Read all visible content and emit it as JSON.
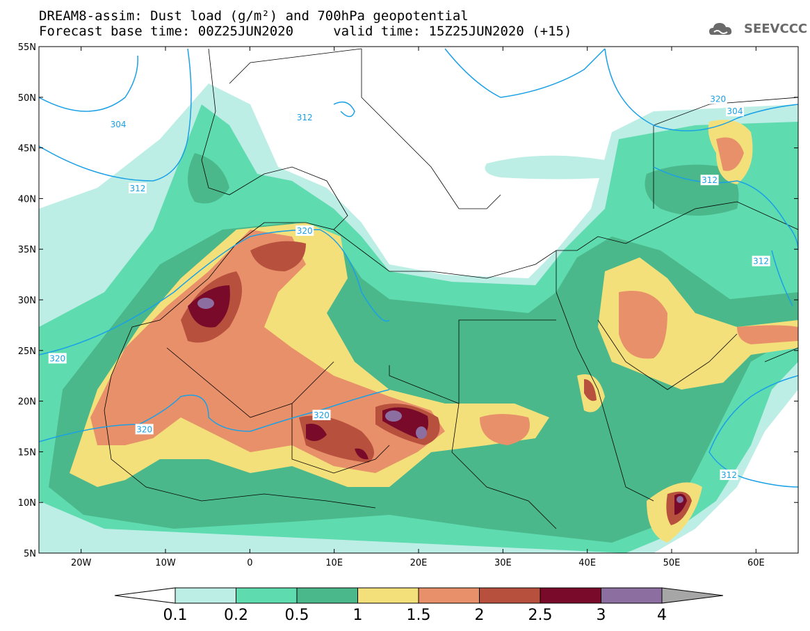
{
  "header": {
    "title_line1": "DREAM8-assim: Dust load (g/m²) and 700hPa geopotential",
    "title_line2": "Forecast base time: 00Z25JUN2020     valid time: 15Z25JUN2020 (+15)",
    "logo_text": "SEEVCCC"
  },
  "map": {
    "lat_labels": [
      "55N",
      "50N",
      "45N",
      "40N",
      "35N",
      "30N",
      "25N",
      "20N",
      "15N",
      "10N",
      "5N"
    ],
    "lon_labels": [
      "20W",
      "10W",
      "0",
      "10E",
      "20E",
      "30E",
      "40E",
      "50E",
      "60E"
    ],
    "lat_range": [
      5,
      55
    ],
    "lon_range": [
      -25,
      65
    ],
    "contour_labels": [
      {
        "text": "304",
        "lon": -15.6,
        "lat": 47.3
      },
      {
        "text": "304",
        "lon": 57.5,
        "lat": 48.6
      },
      {
        "text": "312",
        "lon": -13.3,
        "lat": 41.0
      },
      {
        "text": "312",
        "lon": 6.5,
        "lat": 48.0
      },
      {
        "text": "312",
        "lon": 54.5,
        "lat": 41.8
      },
      {
        "text": "312",
        "lon": 60.6,
        "lat": 33.8
      },
      {
        "text": "312",
        "lon": 56.8,
        "lat": 12.7
      },
      {
        "text": "320",
        "lon": 55.5,
        "lat": 49.8
      },
      {
        "text": "320",
        "lon": -22.8,
        "lat": 24.2
      },
      {
        "text": "320",
        "lon": -12.5,
        "lat": 17.2
      },
      {
        "text": "320",
        "lon": 6.5,
        "lat": 36.8
      },
      {
        "text": "320",
        "lon": 8.5,
        "lat": 18.6
      }
    ],
    "colors": {
      "background": "#ffffff",
      "contour": "#1aa0e6",
      "border": "#000000",
      "level_fills": [
        "#bdeee6",
        "#5fdbb0",
        "#4bb88b",
        "#f4e07a",
        "#e8906a",
        "#b8503e",
        "#7a0a2a",
        "#8c6ea0",
        "#a6a6a6"
      ]
    }
  },
  "colorbar": {
    "labels": [
      "0.1",
      "0.2",
      "0.5",
      "1",
      "1.5",
      "2",
      "2.5",
      "3",
      "4"
    ],
    "colors": [
      "#ffffff",
      "#bdeee6",
      "#5fdbb0",
      "#4bb88b",
      "#f4e07a",
      "#e8906a",
      "#b8503e",
      "#7a0a2a",
      "#8c6ea0",
      "#a6a6a6"
    ]
  }
}
